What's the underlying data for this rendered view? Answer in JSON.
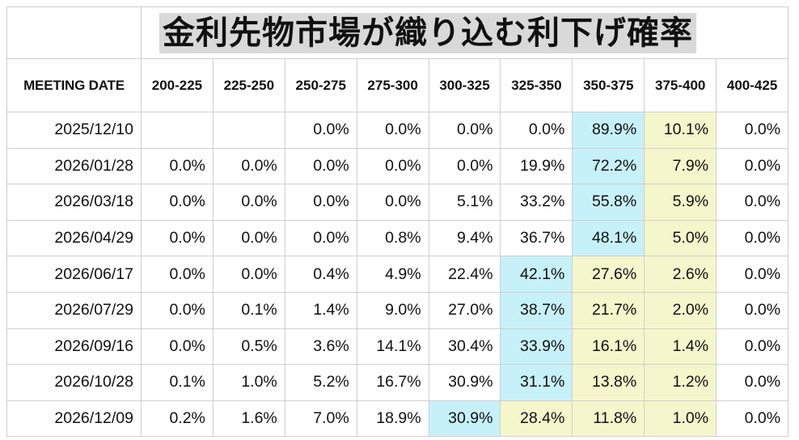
{
  "title": "金利先物市場が織り込む利下げ確率",
  "colors": {
    "highest_probability": "#c7f1f9",
    "above_highest": "#f6f6cc"
  },
  "chart_data": {
    "type": "table",
    "title": "金利先物市場が織り込む利下げ確率",
    "columns": [
      "MEETING DATE",
      "200-225",
      "225-250",
      "250-275",
      "275-300",
      "300-325",
      "325-350",
      "350-375",
      "375-400",
      "400-425"
    ],
    "rows": [
      {
        "date": "2025/12/10",
        "values": [
          "",
          "",
          "0.0%",
          "0.0%",
          "0.0%",
          "0.0%",
          "89.9%",
          "10.1%",
          "0.0%"
        ],
        "max_idx": 6
      },
      {
        "date": "2026/01/28",
        "values": [
          "0.0%",
          "0.0%",
          "0.0%",
          "0.0%",
          "0.0%",
          "19.9%",
          "72.2%",
          "7.9%",
          "0.0%"
        ],
        "max_idx": 6
      },
      {
        "date": "2026/03/18",
        "values": [
          "0.0%",
          "0.0%",
          "0.0%",
          "0.0%",
          "5.1%",
          "33.2%",
          "55.8%",
          "5.9%",
          "0.0%"
        ],
        "max_idx": 6
      },
      {
        "date": "2026/04/29",
        "values": [
          "0.0%",
          "0.0%",
          "0.0%",
          "0.8%",
          "9.4%",
          "36.7%",
          "48.1%",
          "5.0%",
          "0.0%"
        ],
        "max_idx": 6
      },
      {
        "date": "2026/06/17",
        "values": [
          "0.0%",
          "0.0%",
          "0.4%",
          "4.9%",
          "22.4%",
          "42.1%",
          "27.6%",
          "2.6%",
          "0.0%"
        ],
        "max_idx": 5
      },
      {
        "date": "2026/07/29",
        "values": [
          "0.0%",
          "0.1%",
          "1.4%",
          "9.0%",
          "27.0%",
          "38.7%",
          "21.7%",
          "2.0%",
          "0.0%"
        ],
        "max_idx": 5
      },
      {
        "date": "2026/09/16",
        "values": [
          "0.0%",
          "0.5%",
          "3.6%",
          "14.1%",
          "30.4%",
          "33.9%",
          "16.1%",
          "1.4%",
          "0.0%"
        ],
        "max_idx": 5
      },
      {
        "date": "2026/10/28",
        "values": [
          "0.1%",
          "1.0%",
          "5.2%",
          "16.7%",
          "30.9%",
          "31.1%",
          "13.8%",
          "1.2%",
          "0.0%"
        ],
        "max_idx": 5
      },
      {
        "date": "2026/12/09",
        "values": [
          "0.2%",
          "1.6%",
          "7.0%",
          "18.9%",
          "30.9%",
          "28.4%",
          "11.8%",
          "1.0%",
          "0.0%"
        ],
        "max_idx": 4
      }
    ]
  }
}
